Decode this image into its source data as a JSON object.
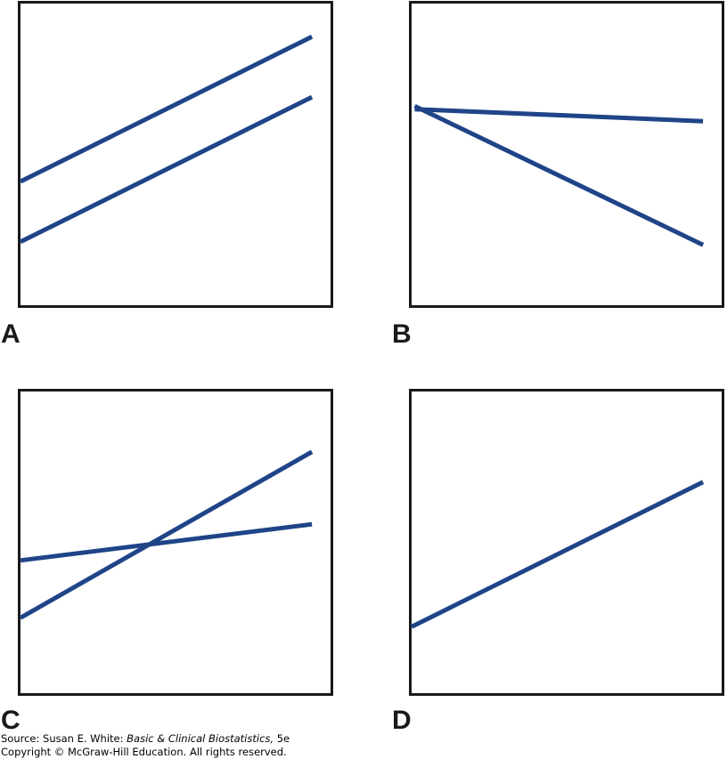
{
  "line_color": "#1f4488",
  "frame_color": "#1a1a1a",
  "chart_data": [
    {
      "type": "line",
      "panel": "A",
      "xlim": [
        0,
        1
      ],
      "ylim": [
        0,
        1
      ],
      "series": [
        {
          "x": [
            0,
            0.94
          ],
          "y": [
            0.41,
            0.89
          ]
        },
        {
          "x": [
            0,
            0.94
          ],
          "y": [
            0.21,
            0.69
          ]
        }
      ]
    },
    {
      "type": "line",
      "panel": "B",
      "xlim": [
        0,
        1
      ],
      "ylim": [
        0,
        1
      ],
      "series": [
        {
          "x": [
            0.01,
            0.94
          ],
          "y": [
            0.65,
            0.61
          ]
        },
        {
          "x": [
            0.01,
            0.94
          ],
          "y": [
            0.66,
            0.2
          ]
        }
      ]
    },
    {
      "type": "line",
      "panel": "C",
      "xlim": [
        0,
        1
      ],
      "ylim": [
        0,
        1
      ],
      "series": [
        {
          "x": [
            0,
            0.94
          ],
          "y": [
            0.44,
            0.56
          ]
        },
        {
          "x": [
            0,
            0.94
          ],
          "y": [
            0.25,
            0.8
          ]
        }
      ]
    },
    {
      "type": "line",
      "panel": "D",
      "xlim": [
        0,
        1
      ],
      "ylim": [
        0,
        1
      ],
      "series": [
        {
          "x": [
            0,
            0.94
          ],
          "y": [
            0.22,
            0.7
          ]
        }
      ]
    }
  ],
  "labels": {
    "a": "A",
    "b": "B",
    "c": "C",
    "d": "D"
  },
  "source": {
    "prefix": "Source: Susan E. White: ",
    "title": "Basic & Clinical Biostatistics,",
    "edition": " 5e",
    "copyright": "Copyright © McGraw-Hill Education. All rights reserved."
  }
}
